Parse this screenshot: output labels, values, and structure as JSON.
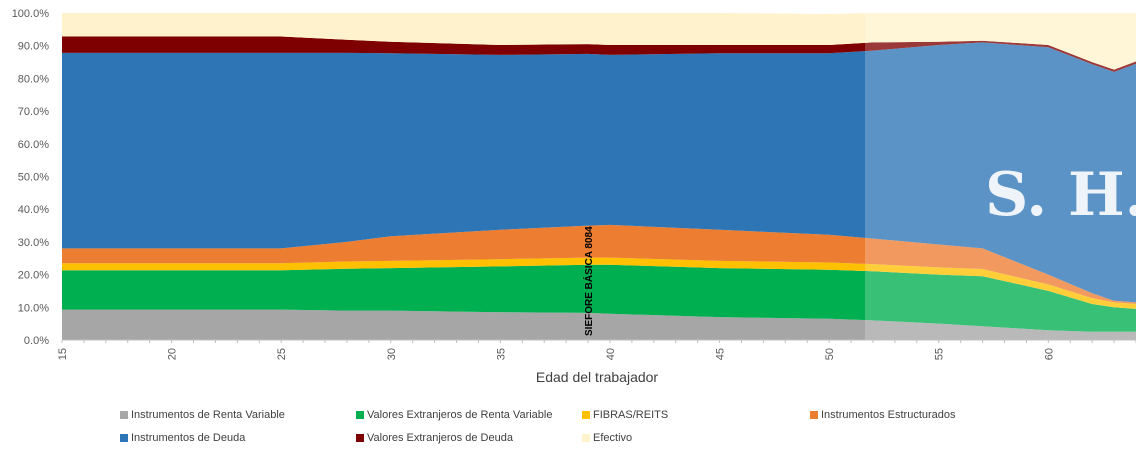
{
  "chart_data": {
    "type": "area",
    "stacked": true,
    "xlabel": "Edad del trabajador",
    "ylabel": "",
    "xlim": [
      15,
      64
    ],
    "ylim": [
      0,
      100
    ],
    "x_ticks": [
      15,
      20,
      25,
      30,
      35,
      40,
      45,
      50,
      55,
      60
    ],
    "y_ticks": [
      "0.0%",
      "10.0%",
      "20.0%",
      "30.0%",
      "40.0%",
      "50.0%",
      "60.0%",
      "70.0%",
      "80.0%",
      "90.0%",
      "100.0%"
    ],
    "annotation": {
      "text": "SIEFORE BÁSICA 8084",
      "x": 39
    },
    "watermark": "S. H.",
    "x": [
      15,
      20,
      25,
      28,
      30,
      35,
      39,
      40,
      45,
      50,
      52,
      55,
      57,
      60,
      62,
      63,
      64
    ],
    "series": [
      {
        "name": "Instrumentos de Renta Variable",
        "color": "#a6a6a6",
        "values": [
          9.3,
          9.3,
          9.3,
          9.0,
          9.0,
          8.5,
          8.3,
          8.0,
          7.0,
          6.5,
          6.0,
          5.0,
          4.2,
          3.0,
          2.5,
          2.5,
          2.5
        ]
      },
      {
        "name": "Valores Extranjeros de Renta Variable",
        "color": "#00b050",
        "values": [
          12.0,
          12.0,
          12.0,
          12.8,
          13.0,
          14.0,
          14.7,
          15.0,
          15.0,
          15.0,
          15.0,
          15.0,
          15.3,
          12.0,
          8.5,
          7.5,
          7.0
        ]
      },
      {
        "name": "FIBRAS/REITS",
        "color": "#ffc000",
        "values": [
          2.2,
          2.2,
          2.2,
          2.2,
          2.2,
          2.2,
          2.2,
          2.2,
          2.2,
          2.2,
          2.2,
          2.2,
          2.2,
          2.0,
          1.8,
          1.5,
          1.5
        ]
      },
      {
        "name": "Instrumentos Estructurados",
        "color": "#ed7d31",
        "values": [
          4.5,
          4.5,
          4.5,
          6.0,
          7.5,
          9.0,
          9.8,
          10.0,
          9.5,
          8.5,
          7.8,
          7.0,
          6.3,
          3.0,
          1.5,
          0.5,
          0.5
        ]
      },
      {
        "name": "Instrumentos de Deuda",
        "color": "#2e75b6",
        "values": [
          59.8,
          59.8,
          59.8,
          57.8,
          56.0,
          53.5,
          52.5,
          52.0,
          54.0,
          55.5,
          57.5,
          61.0,
          63.0,
          69.5,
          70.0,
          70.0,
          73.0
        ]
      },
      {
        "name": "Valores Extranjeros de Deuda",
        "color": "#7f0000",
        "values": [
          5.0,
          5.0,
          5.0,
          4.0,
          3.5,
          3.0,
          3.0,
          3.0,
          2.5,
          2.5,
          2.5,
          1.0,
          0.5,
          0.7,
          0.7,
          0.7,
          0.7
        ]
      },
      {
        "name": "Efectivo",
        "color": "#fff2cc",
        "values": [
          7.2,
          7.2,
          7.2,
          8.2,
          8.8,
          9.8,
          9.5,
          9.8,
          9.8,
          9.5,
          9.0,
          8.8,
          8.5,
          9.8,
          15.0,
          17.3,
          14.8
        ]
      }
    ]
  }
}
